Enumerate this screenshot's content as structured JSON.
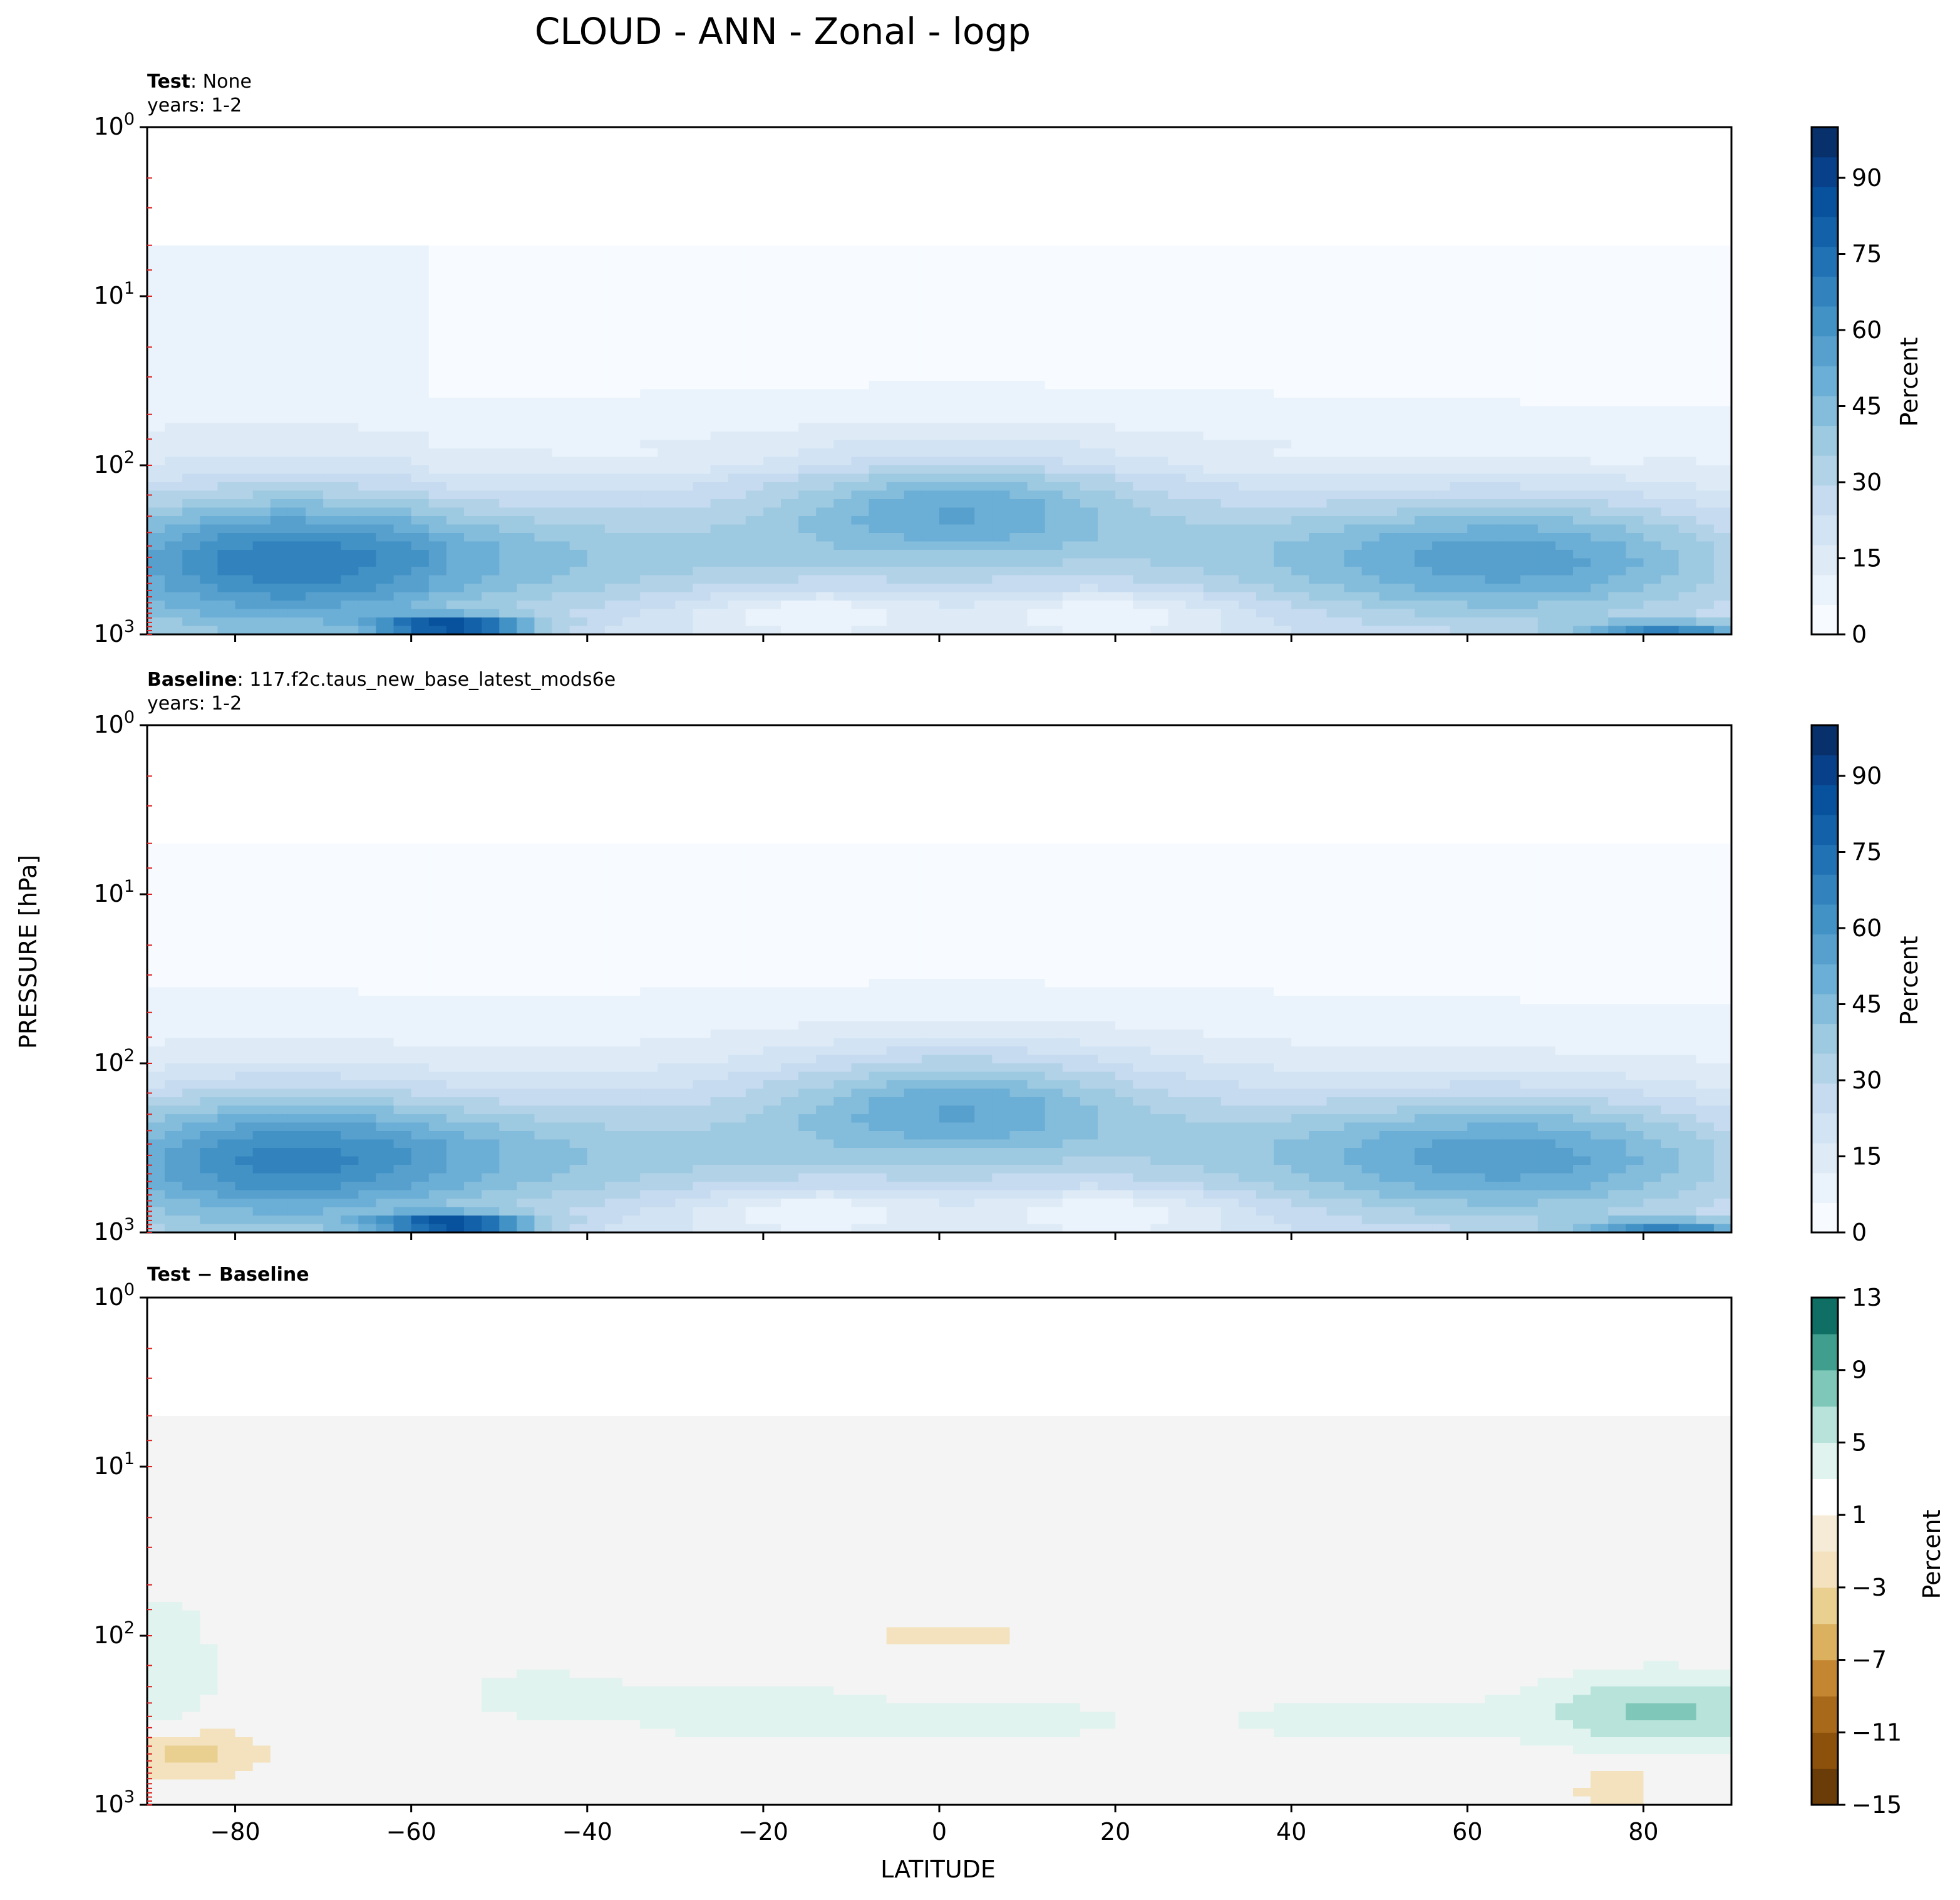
{
  "figure": {
    "title": "CLOUD - ANN - Zonal - logp",
    "ylabel": "PRESSURE [hPa]",
    "xlabel": "LATITUDE"
  },
  "panels": [
    {
      "label_bold": "Test",
      "label_rest": ": None",
      "years": "years: 1-2",
      "colorbar_label": "Percent"
    },
    {
      "label_bold": "Baseline",
      "label_rest": ": 117.f2c.taus_new_base_latest_mods6e",
      "years": "years: 1-2",
      "colorbar_label": "Percent"
    },
    {
      "label_bold": "Test − Baseline",
      "label_rest": "",
      "years": "",
      "colorbar_label": "Percent"
    }
  ],
  "colors": {
    "blues": [
      "#f7fbff",
      "#eaf3fb",
      "#deebf7",
      "#d2e3f3",
      "#c6dbef",
      "#b2d2e8",
      "#9ecae1",
      "#84bcdb",
      "#6baed6",
      "#57a0ce",
      "#4292c6",
      "#3282be",
      "#2171b5",
      "#1361a9",
      "#08519c",
      "#08408a",
      "#08306b"
    ],
    "brbg_neg": [
      "#6a3d08",
      "#8c510a",
      "#a86a1a",
      "#c48630",
      "#dbb05e",
      "#e9cf90",
      "#f3e2bd",
      "#f6ebd6"
    ],
    "brbg_pos": [
      "#ffffff",
      "#e0f3ef",
      "#b8e3da",
      "#7fc7b8",
      "#3f9e8d",
      "#0f6f64",
      "#01463c"
    ],
    "background_diff": "#f3f4f3"
  },
  "chart_data": [
    {
      "type": "contour",
      "panel": "Test",
      "xlim": [
        -90,
        90
      ],
      "ylim_hpa": [
        1000,
        1
      ],
      "y_scale": "log",
      "x_ticks": [
        -80,
        -60,
        -40,
        -20,
        0,
        20,
        40,
        60,
        80
      ],
      "y_ticks": [
        "10^0",
        "10^1",
        "10^2",
        "10^3"
      ],
      "colorbar_ticks": [
        0,
        15,
        30,
        45,
        60,
        75,
        90
      ],
      "colorbar_range": [
        0,
        100
      ],
      "levels_step": 5,
      "features": [
        {
          "lat_range": [
            -90,
            -55
          ],
          "p_range_hpa": [
            5,
            1000
          ],
          "value": 3
        },
        {
          "lat_range": [
            -90,
            90
          ],
          "p_range_hpa": [
            80,
            1000
          ],
          "value": 8
        },
        {
          "lat_range": [
            -10,
            15
          ],
          "p_range_hpa": [
            150,
            250
          ],
          "value": 28
        },
        {
          "lat_range": [
            -90,
            -50
          ],
          "p_range_hpa": [
            250,
            800
          ],
          "value": 40
        },
        {
          "lat_range": [
            55,
            90
          ],
          "p_range_hpa": [
            280,
            700
          ],
          "value": 35
        },
        {
          "lat_range": [
            -65,
            -40
          ],
          "p_range_hpa": [
            850,
            950
          ],
          "value": 70
        },
        {
          "lat_range": [
            75,
            90
          ],
          "p_range_hpa": [
            900,
            1000
          ],
          "value": 55
        }
      ]
    },
    {
      "type": "contour",
      "panel": "Baseline",
      "xlim": [
        -90,
        90
      ],
      "ylim_hpa": [
        1000,
        1
      ],
      "y_scale": "log",
      "x_ticks": [
        -80,
        -60,
        -40,
        -20,
        0,
        20,
        40,
        60,
        80
      ],
      "y_ticks": [
        "10^0",
        "10^1",
        "10^2",
        "10^3"
      ],
      "colorbar_ticks": [
        0,
        15,
        30,
        45,
        60,
        75,
        90
      ],
      "colorbar_range": [
        0,
        100
      ],
      "levels_step": 5,
      "features": [
        {
          "lat_range": [
            -90,
            90
          ],
          "p_range_hpa": [
            5,
            1000
          ],
          "value": 2
        },
        {
          "lat_range": [
            -90,
            90
          ],
          "p_range_hpa": [
            80,
            1000
          ],
          "value": 8
        },
        {
          "lat_range": [
            -10,
            15
          ],
          "p_range_hpa": [
            150,
            250
          ],
          "value": 28
        },
        {
          "lat_range": [
            -90,
            -50
          ],
          "p_range_hpa": [
            250,
            800
          ],
          "value": 40
        },
        {
          "lat_range": [
            55,
            90
          ],
          "p_range_hpa": [
            280,
            700
          ],
          "value": 35
        },
        {
          "lat_range": [
            -65,
            -40
          ],
          "p_range_hpa": [
            850,
            950
          ],
          "value": 70
        },
        {
          "lat_range": [
            75,
            90
          ],
          "p_range_hpa": [
            900,
            1000
          ],
          "value": 55
        }
      ]
    },
    {
      "type": "contour",
      "panel": "Test - Baseline",
      "xlim": [
        -90,
        90
      ],
      "ylim_hpa": [
        1000,
        1
      ],
      "y_scale": "log",
      "x_ticks": [
        -80,
        -60,
        -40,
        -20,
        0,
        20,
        40,
        60,
        80
      ],
      "y_ticks": [
        "10^0",
        "10^1",
        "10^2",
        "10^3"
      ],
      "colorbar_ticks": [
        -15,
        -11,
        -7,
        -3,
        1,
        5,
        9,
        13
      ],
      "colorbar_tick_labels": [
        "−15",
        "−11",
        "−7",
        "−3",
        "1",
        "5",
        "9",
        "13"
      ],
      "colorbar_range": [
        -15,
        13
      ],
      "levels": [
        -15,
        -13,
        -11,
        -9,
        -7,
        -5,
        -3,
        -1,
        1,
        3,
        5,
        7,
        9,
        11,
        13
      ],
      "features": [
        {
          "lat_range": [
            -90,
            -85
          ],
          "p_range_hpa": [
            60,
            250
          ],
          "value": 2
        },
        {
          "lat_range": [
            -50,
            -40
          ],
          "p_range_hpa": [
            180,
            300
          ],
          "value": 2
        },
        {
          "lat_range": [
            -30,
            -15
          ],
          "p_range_hpa": [
            200,
            450
          ],
          "value": 2
        },
        {
          "lat_range": [
            -5,
            15
          ],
          "p_range_hpa": [
            250,
            400
          ],
          "value": 2
        },
        {
          "lat_range": [
            40,
            55
          ],
          "p_range_hpa": [
            270,
            380
          ],
          "value": 2
        },
        {
          "lat_range": [
            70,
            90
          ],
          "p_range_hpa": [
            200,
            600
          ],
          "value": 4
        },
        {
          "lat_range": [
            -5,
            8
          ],
          "p_range_hpa": [
            95,
            115
          ],
          "value": -2
        },
        {
          "lat_range": [
            -90,
            -80
          ],
          "p_range_hpa": [
            400,
            700
          ],
          "value": -3
        },
        {
          "lat_range": [
            74,
            80
          ],
          "p_range_hpa": [
            600,
            1000
          ],
          "value": -2
        }
      ]
    }
  ]
}
